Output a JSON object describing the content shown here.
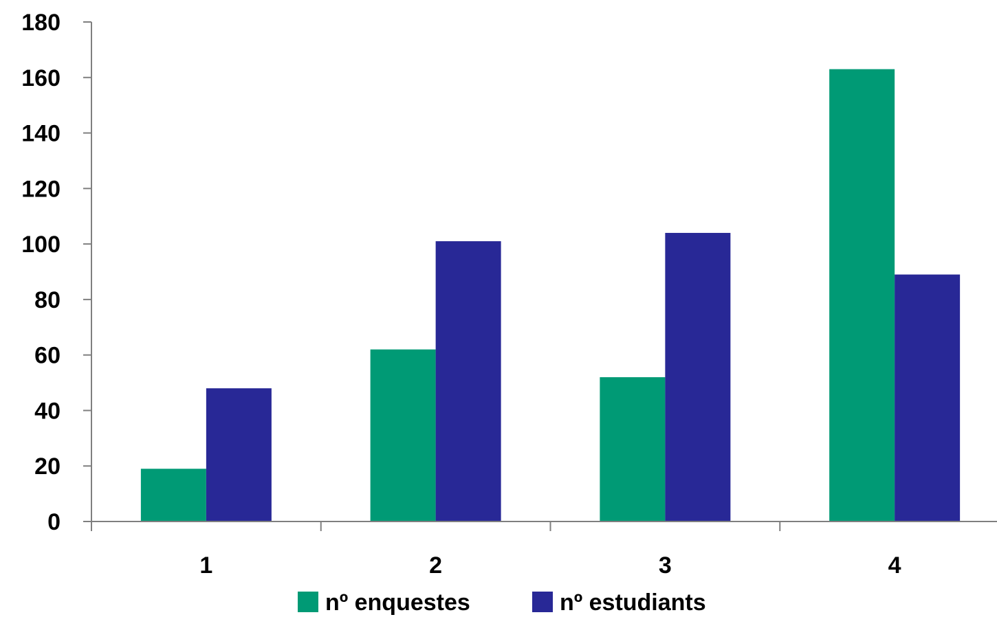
{
  "chart_data": {
    "type": "bar",
    "title": "",
    "xlabel": "",
    "ylabel": "",
    "categories": [
      "1",
      "2",
      "3",
      "4"
    ],
    "series": [
      {
        "name": "nº enquestes",
        "values": [
          19,
          62,
          52,
          163
        ],
        "color": "#009a75"
      },
      {
        "name": "nº estudiants",
        "values": [
          48,
          101,
          104,
          89
        ],
        "color": "#282896"
      }
    ],
    "ylim": [
      0,
      180
    ],
    "yticks": [
      "0",
      "20",
      "40",
      "60",
      "80",
      "100",
      "120",
      "140",
      "160",
      "180"
    ],
    "grid": false,
    "legend": "bottom"
  }
}
